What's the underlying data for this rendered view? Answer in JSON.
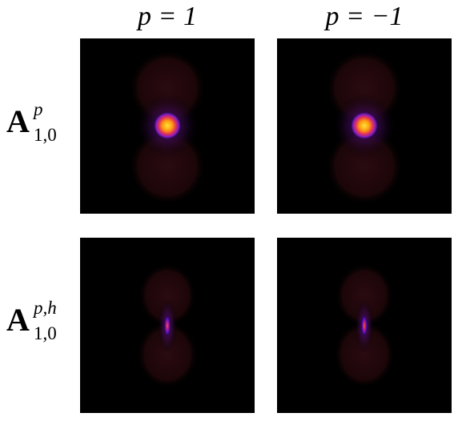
{
  "columns": [
    "p = 1",
    "p = −1"
  ],
  "rows": [
    {
      "base": "A",
      "sup": "p",
      "sub": "1,0"
    },
    {
      "base": "A",
      "sup": "p,h",
      "sub": "1,0"
    }
  ]
}
